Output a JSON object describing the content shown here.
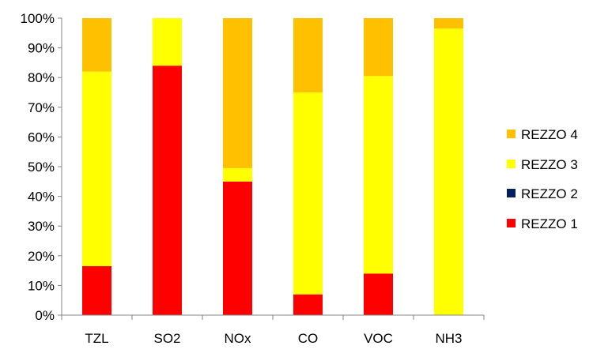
{
  "chart_data": {
    "type": "bar",
    "stacked": true,
    "percent_stacked": true,
    "categories": [
      "TZL",
      "SO2",
      "NOx",
      "CO",
      "VOC",
      "NH3"
    ],
    "series": [
      {
        "name": "REZZO 1",
        "color": "#ff0000",
        "values": [
          16.5,
          84,
          45,
          7,
          14,
          0
        ]
      },
      {
        "name": "REZZO 2",
        "color": "#002060",
        "values": [
          0,
          0,
          0,
          0,
          0,
          0
        ]
      },
      {
        "name": "REZZO 3",
        "color": "#ffff00",
        "values": [
          65.5,
          16,
          4.5,
          68,
          66.5,
          96.5
        ]
      },
      {
        "name": "REZZO 4",
        "color": "#ffc000",
        "values": [
          18,
          0,
          50.5,
          25,
          19.5,
          3.5
        ]
      }
    ],
    "y_ticks": [
      "0%",
      "10%",
      "20%",
      "30%",
      "40%",
      "50%",
      "60%",
      "70%",
      "80%",
      "90%",
      "100%"
    ],
    "ylim": [
      0,
      100
    ],
    "grid": false,
    "legend_position": "right"
  }
}
